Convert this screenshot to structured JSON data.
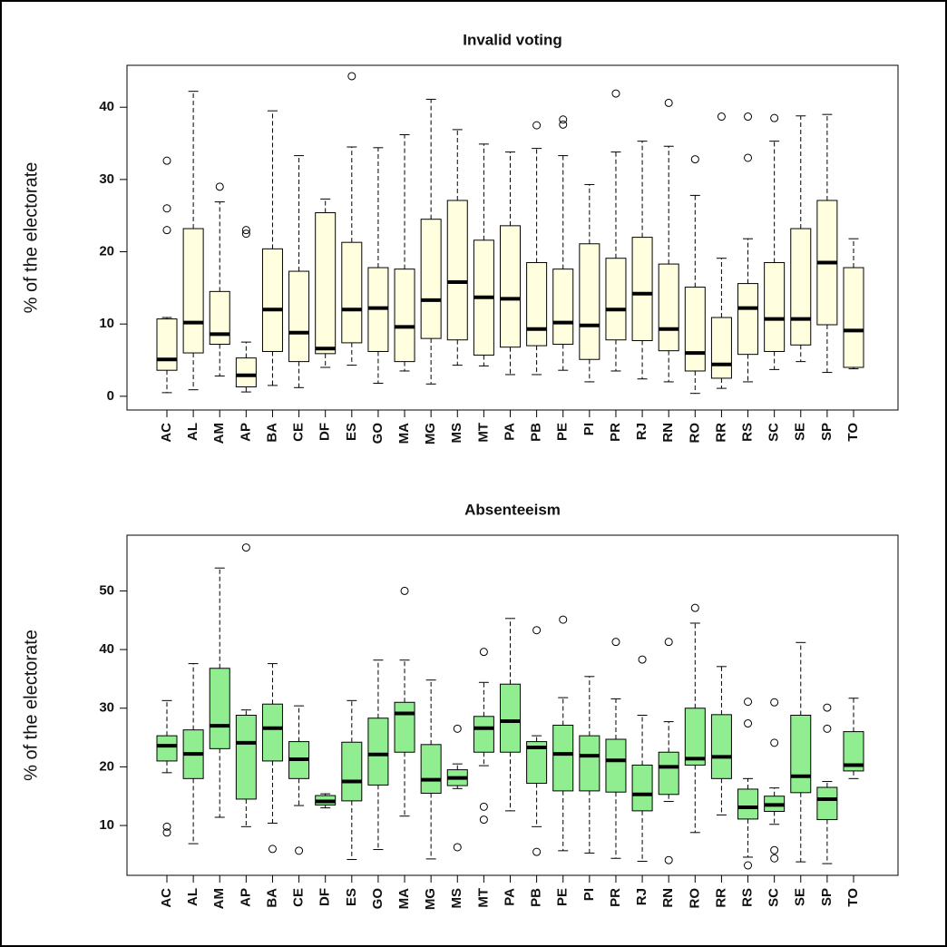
{
  "chart_data": [
    {
      "type": "boxplot",
      "title": "Invalid voting",
      "y_label": "% of the electorate",
      "color": "#ffffe0",
      "categories": [
        "AC",
        "AL",
        "AM",
        "AP",
        "BA",
        "CE",
        "DF",
        "ES",
        "GO",
        "MA",
        "MG",
        "MS",
        "MT",
        "PA",
        "PB",
        "PE",
        "PI",
        "PR",
        "RJ",
        "RN",
        "RO",
        "RR",
        "RS",
        "SC",
        "SE",
        "SP",
        "TO"
      ],
      "whisker_low": [
        0.5,
        0.9,
        2.8,
        0.6,
        1.5,
        1.2,
        4,
        4.3,
        1.8,
        3.5,
        1.7,
        4.3,
        4.2,
        3,
        3,
        3.6,
        2,
        3.5,
        2.4,
        2,
        0.4,
        1.1,
        2,
        3.7,
        4.8,
        3.3,
        3.8
      ],
      "q1": [
        3.6,
        6,
        7.2,
        1.3,
        6.2,
        4.8,
        5.9,
        7.4,
        6.2,
        4.8,
        8,
        7.8,
        5.7,
        6.8,
        7,
        7.2,
        5.1,
        7.8,
        7.7,
        6.3,
        3.5,
        2.5,
        5.8,
        6.2,
        7.1,
        9.9,
        4
      ],
      "median": [
        5.1,
        10.2,
        8.6,
        2.9,
        12,
        8.8,
        6.6,
        12,
        12.2,
        9.6,
        13.3,
        15.8,
        13.7,
        13.5,
        9.3,
        10.2,
        9.8,
        12,
        14.2,
        9.3,
        6,
        4.4,
        12.2,
        10.7,
        10.7,
        18.5,
        9.1
      ],
      "q3": [
        10.7,
        23.2,
        14.5,
        5.3,
        20.4,
        17.3,
        25.4,
        21.3,
        17.8,
        17.6,
        24.5,
        27.1,
        21.6,
        23.6,
        18.5,
        17.6,
        21.1,
        19.1,
        22,
        18.3,
        15.1,
        10.9,
        15.6,
        18.5,
        23.2,
        27.1,
        17.8
      ],
      "whisker_high": [
        10.9,
        42.2,
        26.9,
        7.5,
        39.5,
        33.3,
        27.3,
        34.5,
        34.4,
        36.2,
        41.1,
        36.9,
        34.9,
        33.8,
        34.3,
        33.3,
        29.3,
        33.8,
        35.3,
        34.6,
        27.8,
        19.1,
        21.8,
        35.3,
        38.8,
        39,
        21.8
      ],
      "outliers": [
        [
          32.6,
          26,
          23
        ],
        [],
        [
          29
        ],
        [
          22.5,
          23
        ],
        [],
        [],
        [],
        [
          44.3
        ],
        [],
        [],
        [],
        [],
        [],
        [],
        [
          37.5
        ],
        [
          37.6,
          38.3
        ],
        [],
        [
          41.9
        ],
        [],
        [
          40.6
        ],
        [
          32.8
        ],
        [
          38.7
        ],
        [
          33,
          38.7
        ],
        [
          38.5
        ],
        [],
        [],
        []
      ],
      "ylim": [
        -1.9,
        45.8
      ],
      "yticks": [
        0,
        10,
        20,
        30,
        40
      ]
    },
    {
      "type": "boxplot",
      "title": "Absenteeism",
      "y_label": "% of the electorate",
      "color": "#90ee90",
      "categories": [
        "AC",
        "AL",
        "AM",
        "AP",
        "BA",
        "CE",
        "DF",
        "ES",
        "GO",
        "MA",
        "MG",
        "MS",
        "MT",
        "PA",
        "PB",
        "PE",
        "PI",
        "PR",
        "RJ",
        "RN",
        "RO",
        "RR",
        "RS",
        "SC",
        "SE",
        "SP",
        "TO"
      ],
      "whisker_low": [
        19,
        6.9,
        11.4,
        9.8,
        10.4,
        13.4,
        13,
        4.2,
        5.9,
        11.6,
        4.3,
        16.3,
        20.2,
        12.5,
        9.8,
        5.7,
        5.3,
        4.4,
        3.9,
        14.1,
        8.8,
        11.8,
        4.6,
        10.2,
        3.8,
        3.5,
        18
      ],
      "q1": [
        21,
        18,
        23.1,
        14.5,
        21,
        18,
        13.5,
        14.2,
        16.9,
        22.5,
        15.5,
        16.8,
        22.5,
        22.5,
        17.2,
        15.9,
        15.9,
        15.7,
        12.5,
        15.3,
        20.3,
        18,
        11.1,
        12.4,
        15.6,
        11,
        19.3
      ],
      "median": [
        23.6,
        22.2,
        27,
        24.1,
        26.6,
        21.3,
        14.1,
        17.5,
        22.1,
        29.1,
        17.8,
        18.1,
        26.6,
        27.8,
        23.3,
        22.2,
        21.9,
        21.1,
        15.3,
        20,
        21.4,
        21.7,
        13.1,
        13.5,
        18.4,
        14.5,
        20.3
      ],
      "q3": [
        25.3,
        26.3,
        36.8,
        28.8,
        30.7,
        24.3,
        15.1,
        24.2,
        28.3,
        31,
        23.8,
        19.5,
        28.6,
        34.1,
        24.3,
        27.1,
        25.3,
        24.7,
        20.3,
        22.5,
        30,
        28.9,
        16.2,
        15,
        28.8,
        16.5,
        26
      ],
      "whisker_high": [
        31.3,
        37.6,
        53.9,
        29.7,
        37.6,
        30.4,
        15.4,
        31.3,
        38.2,
        38.2,
        34.8,
        20.5,
        34.4,
        45.3,
        25.3,
        31.8,
        35.4,
        31.6,
        28.8,
        27.7,
        44.5,
        37.1,
        18,
        16.4,
        41.2,
        17.5,
        31.7
      ],
      "outliers": [
        [
          9.8,
          8.8
        ],
        [],
        [],
        [
          57.4
        ],
        [
          6
        ],
        [
          5.7
        ],
        [],
        [],
        [],
        [
          50
        ],
        [],
        [
          26.5,
          6.3
        ],
        [
          39.6,
          13.2,
          11
        ],
        [],
        [
          43.3,
          5.5
        ],
        [
          45.1
        ],
        [],
        [
          41.3
        ],
        [
          38.3
        ],
        [
          41.3,
          4.1
        ],
        [
          47.1
        ],
        [],
        [
          31.1,
          27.4,
          3.2
        ],
        [
          31,
          24.1,
          5.8,
          4.4
        ],
        [],
        [
          30.1,
          26.5
        ],
        []
      ],
      "ylim": [
        1.5,
        59.5
      ],
      "yticks": [
        10,
        20,
        30,
        40,
        50
      ]
    }
  ]
}
